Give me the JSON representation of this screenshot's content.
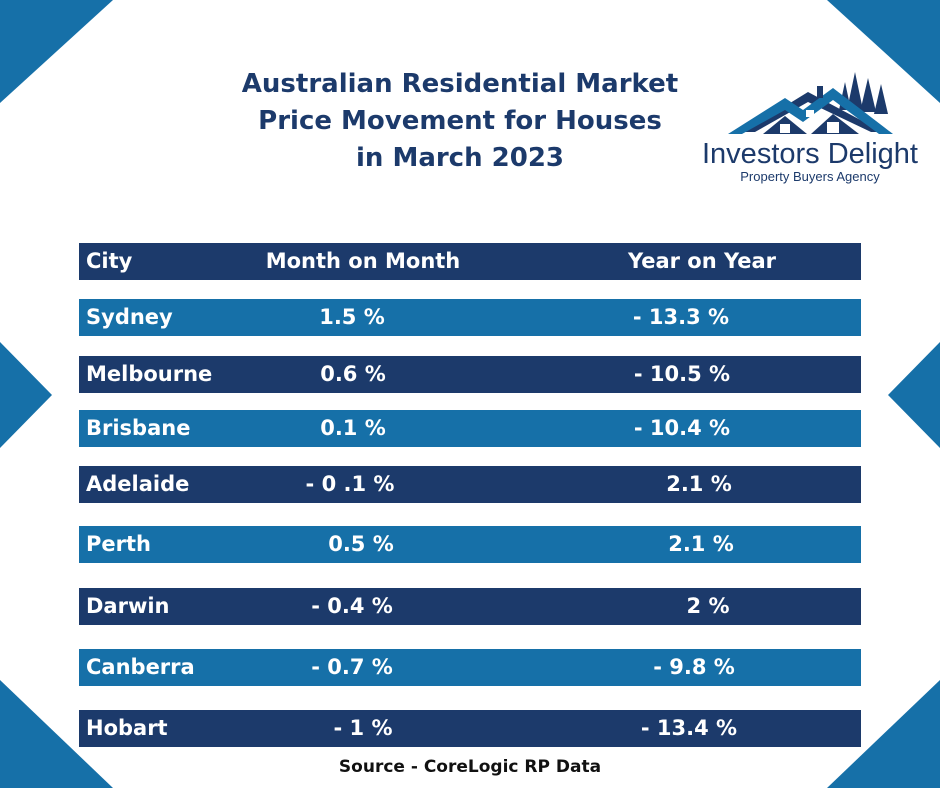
{
  "title": {
    "line1": "Australian Residential Market",
    "line2": "Price Movement for Houses",
    "line3": "in March 2023"
  },
  "logo": {
    "brand": "Investors Delight",
    "tagline": "Property Buyers Agency",
    "icon": "house-roof-trees-icon"
  },
  "colors": {
    "dark_row": "#1c3a6b",
    "light_row": "#1670a8",
    "title": "#1c3a6b"
  },
  "table": {
    "headers": {
      "city": "City",
      "mom": "Month on Month",
      "yoy": "Year on Year"
    },
    "rows": [
      {
        "city": "Sydney",
        "mom": "1.5 %",
        "yoy": "- 13.3  %"
      },
      {
        "city": "Melbourne",
        "mom": "0.6 %",
        "yoy": "- 10.5  %"
      },
      {
        "city": "Brisbane",
        "mom": "0.1 %",
        "yoy": "- 10.4  %"
      },
      {
        "city": "Adelaide",
        "mom": "- 0 .1 %",
        "yoy": "2.1  %"
      },
      {
        "city": "Perth",
        "mom": "0.5 %",
        "yoy": "2.1  %"
      },
      {
        "city": "Darwin",
        "mom": "- 0.4 %",
        "yoy": "2  %"
      },
      {
        "city": "Canberra",
        "mom": "- 0.7 %",
        "yoy": "- 9.8  %"
      },
      {
        "city": "Hobart",
        "mom": "- 1 %",
        "yoy": "- 13.4  %"
      }
    ]
  },
  "source": "Source - CoreLogic RP Data"
}
